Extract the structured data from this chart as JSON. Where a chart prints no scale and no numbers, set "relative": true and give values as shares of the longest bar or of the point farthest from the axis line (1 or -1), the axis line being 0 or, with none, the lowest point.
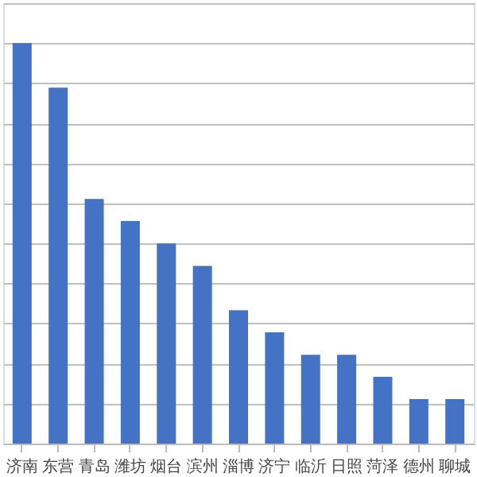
{
  "chart_data": {
    "type": "bar",
    "relative": true,
    "categories": [
      "济南",
      "东营",
      "青岛",
      "潍坊",
      "烟台",
      "滨州",
      "淄博",
      "济宁",
      "临沂",
      "日照",
      "菏泽",
      "德州",
      "聊城"
    ],
    "values": [
      1,
      0.889,
      0.611,
      0.556,
      0.5,
      0.444,
      0.333,
      0.278,
      0.222,
      0.222,
      0.167,
      0.111,
      0.111
    ],
    "color": "#4472c4",
    "grid": "y"
  }
}
